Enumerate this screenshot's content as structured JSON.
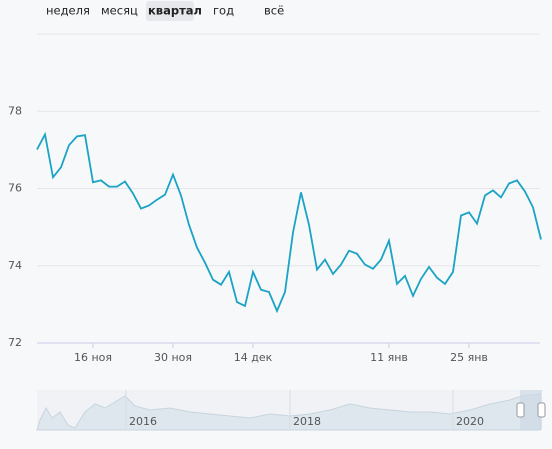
{
  "tabs": [
    "неделя",
    "месяц",
    "квартал",
    "год",
    "всё"
  ],
  "active_tab": 2,
  "chart_data": {
    "type": "line",
    "x": [
      0,
      1,
      2,
      3,
      4,
      5,
      6,
      7,
      8,
      9,
      10,
      11,
      12,
      13,
      14,
      15,
      16,
      17,
      18,
      19,
      20,
      21,
      22,
      23,
      24,
      25,
      26,
      27,
      28,
      29,
      30,
      31,
      32,
      33,
      34,
      35,
      36,
      37,
      38,
      39,
      40,
      41,
      42,
      43,
      44,
      45,
      46,
      47,
      48,
      49,
      50,
      51,
      52,
      53,
      54,
      55,
      56,
      57,
      58,
      59,
      60,
      61,
      62,
      63
    ],
    "series": [
      {
        "color": "#1aa3c4",
        "values": [
          77.01,
          77.4,
          76.29,
          76.55,
          77.12,
          77.35,
          77.38,
          76.16,
          76.21,
          76.05,
          76.05,
          76.18,
          75.87,
          75.48,
          75.56,
          75.71,
          75.84,
          76.36,
          75.82,
          75.06,
          74.47,
          74.08,
          73.64,
          73.51,
          73.84,
          73.06,
          72.96,
          73.84,
          73.38,
          73.32,
          72.83,
          73.32,
          74.86,
          75.9,
          75.06,
          73.9,
          74.16,
          73.79,
          74.03,
          74.39,
          74.31,
          74.03,
          73.92,
          74.16,
          74.65,
          73.53,
          73.74,
          73.22,
          73.66,
          73.97,
          73.69,
          73.53,
          73.84,
          75.3,
          75.38,
          75.09,
          75.82,
          75.95,
          75.77,
          76.13,
          76.21,
          75.92,
          75.51,
          74.68
        ]
      }
    ],
    "xlim": [
      0,
      63.5
    ],
    "xticks": [
      {
        "value": 7,
        "label": "16 ноя"
      },
      {
        "value": 17,
        "label": "30 ноя"
      },
      {
        "value": 27,
        "label": "14 дек"
      },
      {
        "value": 44,
        "label": "11 янв"
      },
      {
        "value": 54,
        "label": "25 янв"
      }
    ],
    "ylim": [
      72,
      80
    ],
    "yticks": [
      72,
      74,
      76,
      78
    ],
    "grid": true
  },
  "navigator": {
    "labels": [
      "2016",
      "2018",
      "2020"
    ]
  }
}
